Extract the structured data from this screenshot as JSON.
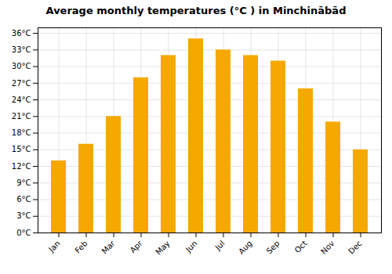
{
  "chart_data": {
    "type": "bar",
    "title": "Average monthly temperatures (°C ) in Minchinābād",
    "categories": [
      "Jan",
      "Feb",
      "Mar",
      "Apr",
      "May",
      "Jun",
      "Jul",
      "Aug",
      "Sep",
      "Oct",
      "Nov",
      "Dec"
    ],
    "values": [
      13,
      16,
      21,
      28,
      32,
      35,
      33,
      32,
      31,
      26,
      20,
      15
    ],
    "color": "#F5A800",
    "ylim": [
      0,
      37
    ],
    "yticks": [
      {
        "value": 0,
        "label": "0°C"
      },
      {
        "value": 3,
        "label": "3°C"
      },
      {
        "value": 6,
        "label": "6°C"
      },
      {
        "value": 9,
        "label": "9°C"
      },
      {
        "value": 12,
        "label": "12°C"
      },
      {
        "value": 15,
        "label": "15°C"
      },
      {
        "value": 18,
        "label": "18°C"
      },
      {
        "value": 21,
        "label": "21°C"
      },
      {
        "value": 24,
        "label": "24°C"
      },
      {
        "value": 27,
        "label": "27°C"
      },
      {
        "value": 30,
        "label": "30°C"
      },
      {
        "value": 33,
        "label": "33°C"
      },
      {
        "value": 36,
        "label": "36°C"
      }
    ],
    "grid": true
  }
}
